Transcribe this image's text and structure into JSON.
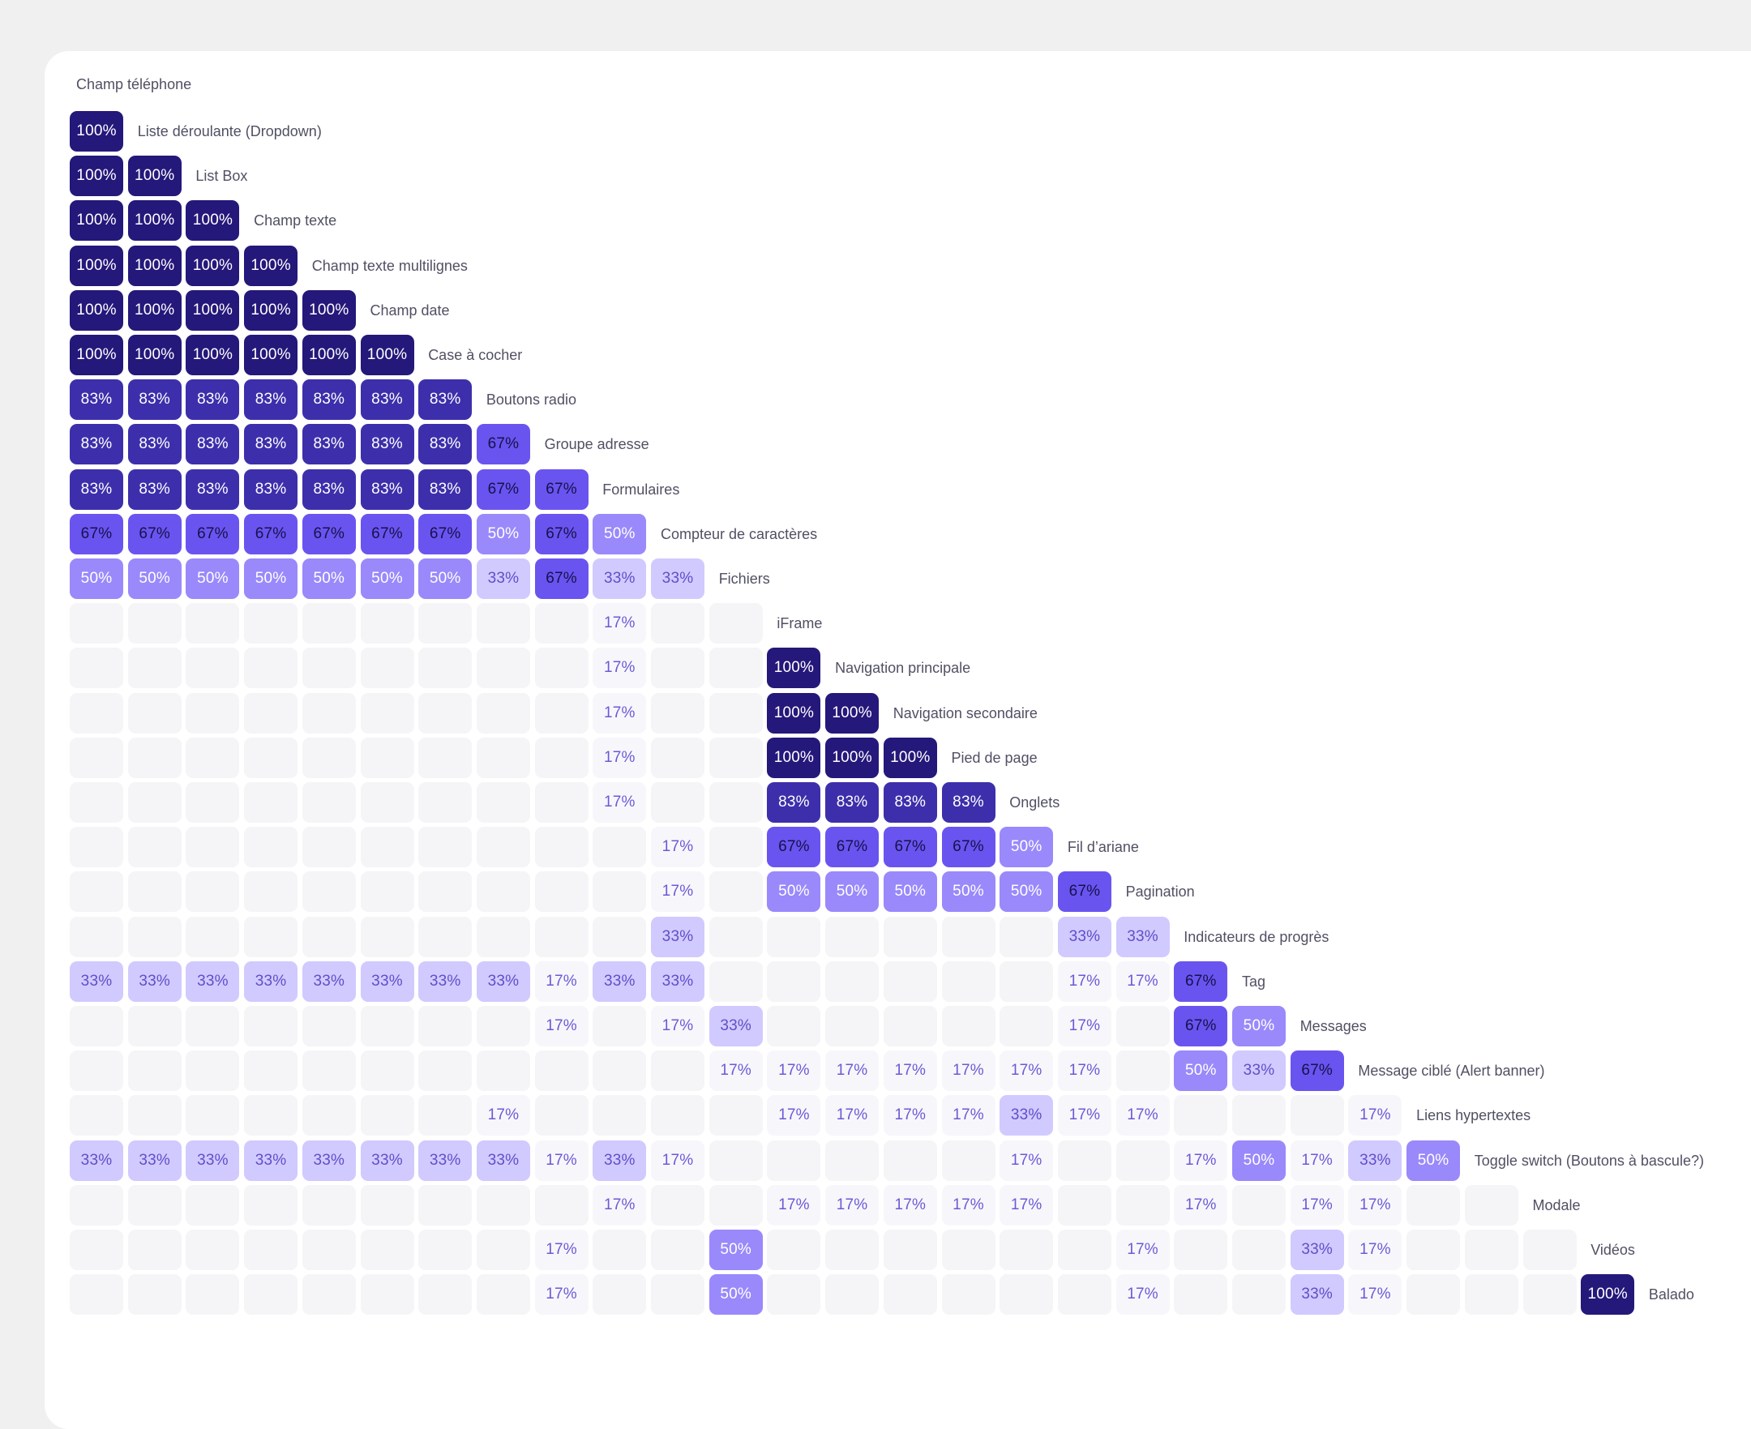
{
  "chart_data": {
    "type": "heatmap",
    "first_label": "Champ téléphone",
    "rows": [
      {
        "label": "Liste déroulante (Dropdown)",
        "values": [
          100
        ]
      },
      {
        "label": "List Box",
        "values": [
          100,
          100
        ]
      },
      {
        "label": "Champ texte",
        "values": [
          100,
          100,
          100
        ]
      },
      {
        "label": "Champ texte multilignes",
        "values": [
          100,
          100,
          100,
          100
        ]
      },
      {
        "label": "Champ date",
        "values": [
          100,
          100,
          100,
          100,
          100
        ]
      },
      {
        "label": "Case à cocher",
        "values": [
          100,
          100,
          100,
          100,
          100,
          100
        ]
      },
      {
        "label": "Boutons radio",
        "values": [
          83,
          83,
          83,
          83,
          83,
          83,
          83
        ]
      },
      {
        "label": "Groupe adresse",
        "values": [
          83,
          83,
          83,
          83,
          83,
          83,
          83,
          67
        ]
      },
      {
        "label": "Formulaires",
        "values": [
          83,
          83,
          83,
          83,
          83,
          83,
          83,
          67,
          67
        ]
      },
      {
        "label": "Compteur de caractères",
        "values": [
          67,
          67,
          67,
          67,
          67,
          67,
          67,
          50,
          67,
          50
        ]
      },
      {
        "label": "Fichiers",
        "values": [
          50,
          50,
          50,
          50,
          50,
          50,
          50,
          33,
          67,
          33,
          33
        ]
      },
      {
        "label": "iFrame",
        "values": [
          null,
          null,
          null,
          null,
          null,
          null,
          null,
          null,
          null,
          17,
          null,
          null
        ]
      },
      {
        "label": "Navigation principale",
        "values": [
          null,
          null,
          null,
          null,
          null,
          null,
          null,
          null,
          null,
          17,
          null,
          null,
          100
        ]
      },
      {
        "label": "Navigation secondaire",
        "values": [
          null,
          null,
          null,
          null,
          null,
          null,
          null,
          null,
          null,
          17,
          null,
          null,
          100,
          100
        ]
      },
      {
        "label": "Pied de page",
        "values": [
          null,
          null,
          null,
          null,
          null,
          null,
          null,
          null,
          null,
          17,
          null,
          null,
          100,
          100,
          100
        ]
      },
      {
        "label": "Onglets",
        "values": [
          null,
          null,
          null,
          null,
          null,
          null,
          null,
          null,
          null,
          17,
          null,
          null,
          83,
          83,
          83,
          83
        ]
      },
      {
        "label": "Fil d’ariane",
        "values": [
          null,
          null,
          null,
          null,
          null,
          null,
          null,
          null,
          null,
          null,
          17,
          null,
          67,
          67,
          67,
          67,
          50
        ]
      },
      {
        "label": "Pagination",
        "values": [
          null,
          null,
          null,
          null,
          null,
          null,
          null,
          null,
          null,
          null,
          17,
          null,
          50,
          50,
          50,
          50,
          50,
          67
        ]
      },
      {
        "label": "Indicateurs de progrès",
        "values": [
          null,
          null,
          null,
          null,
          null,
          null,
          null,
          null,
          null,
          null,
          33,
          null,
          null,
          null,
          null,
          null,
          null,
          33,
          33
        ]
      },
      {
        "label": "Tag",
        "values": [
          33,
          33,
          33,
          33,
          33,
          33,
          33,
          33,
          17,
          33,
          33,
          null,
          null,
          null,
          null,
          null,
          null,
          17,
          17,
          67
        ]
      },
      {
        "label": "Messages",
        "values": [
          null,
          null,
          null,
          null,
          null,
          null,
          null,
          null,
          17,
          null,
          17,
          33,
          null,
          null,
          null,
          null,
          null,
          17,
          null,
          67,
          50
        ]
      },
      {
        "label": "Message ciblé  (Alert banner)",
        "values": [
          null,
          null,
          null,
          null,
          null,
          null,
          null,
          null,
          null,
          null,
          null,
          17,
          17,
          17,
          17,
          17,
          17,
          17,
          null,
          50,
          33,
          67
        ]
      },
      {
        "label": "Liens hypertextes",
        "values": [
          null,
          null,
          null,
          null,
          null,
          null,
          null,
          17,
          null,
          null,
          null,
          null,
          17,
          17,
          17,
          17,
          33,
          17,
          17,
          null,
          null,
          null,
          17
        ]
      },
      {
        "label": "Toggle switch (Boutons à bascule?)",
        "values": [
          33,
          33,
          33,
          33,
          33,
          33,
          33,
          33,
          17,
          33,
          17,
          null,
          null,
          null,
          null,
          null,
          17,
          null,
          null,
          17,
          50,
          17,
          33,
          50
        ]
      },
      {
        "label": "Modale",
        "values": [
          null,
          null,
          null,
          null,
          null,
          null,
          null,
          null,
          null,
          17,
          null,
          null,
          17,
          17,
          17,
          17,
          17,
          null,
          null,
          17,
          null,
          17,
          17,
          null,
          null
        ]
      },
      {
        "label": "Vidéos",
        "values": [
          null,
          null,
          null,
          null,
          null,
          null,
          null,
          null,
          17,
          null,
          null,
          50,
          null,
          null,
          null,
          null,
          null,
          null,
          17,
          null,
          null,
          33,
          17,
          null,
          null,
          null
        ]
      },
      {
        "label": "Balado",
        "values": [
          null,
          null,
          null,
          null,
          null,
          null,
          null,
          null,
          17,
          null,
          null,
          50,
          null,
          null,
          null,
          null,
          null,
          null,
          17,
          null,
          null,
          33,
          17,
          null,
          null,
          null,
          100
        ]
      }
    ],
    "value_suffix": "%",
    "colors": {
      "100": "#24187a",
      "83": "#3d2fab",
      "67": "#6a54f0",
      "50": "#9989fb",
      "33": "#d1caff",
      "17": "#f7f7fb",
      "empty": "#f5f5f8"
    },
    "text_colors": {
      "100": "#ffffff",
      "83": "#ffffff",
      "67": "#17114a",
      "50": "#ffffff",
      "33": "#5f4fc8",
      "17": "#6b5ad6"
    }
  }
}
